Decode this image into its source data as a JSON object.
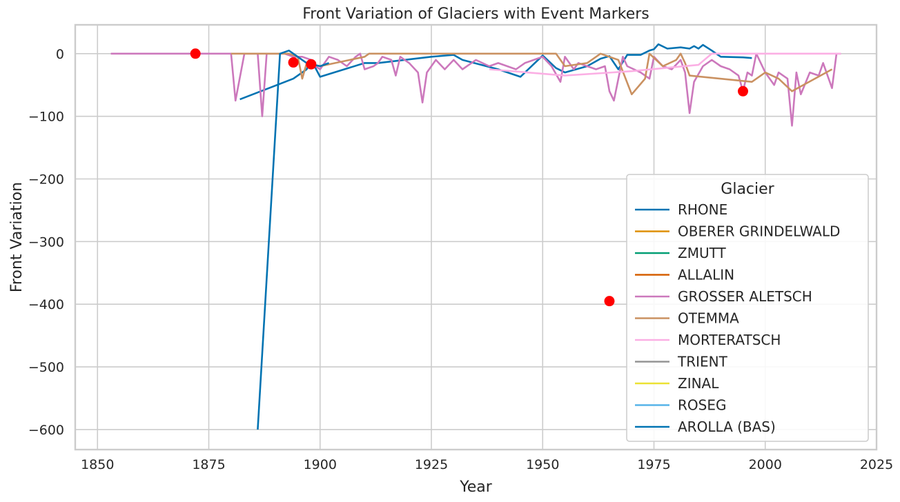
{
  "chart_data": {
    "type": "line",
    "title": "Front Variation of Glaciers with Event Markers",
    "xlabel": "Year",
    "ylabel": "Front Variation",
    "xlim": [
      1845,
      2025
    ],
    "ylim": [
      -632,
      46
    ],
    "x_ticks": [
      1850,
      1875,
      1900,
      1925,
      1950,
      1975,
      2000,
      2025
    ],
    "y_ticks": [
      0,
      -100,
      -200,
      -300,
      -400,
      -500,
      -600
    ],
    "grid": true,
    "legend": {
      "title": "Glacier",
      "placement": "lower-right"
    },
    "series": [
      {
        "name": "RHONE",
        "color": "#0173b2",
        "points": [
          [
            1882,
            -73
          ],
          [
            1894,
            -40
          ],
          [
            1897,
            -25
          ],
          [
            1898,
            -10
          ],
          [
            1900,
            -37
          ],
          [
            1910,
            -15
          ],
          [
            1913,
            -15
          ],
          [
            1925,
            -5
          ],
          [
            1930,
            -2
          ],
          [
            1932,
            -10
          ],
          [
            1940,
            -25
          ],
          [
            1945,
            -37
          ],
          [
            1950,
            -3
          ],
          [
            1953,
            -23
          ],
          [
            1955,
            -30
          ],
          [
            1960,
            -20
          ],
          [
            1963,
            -8
          ],
          [
            1965,
            -4
          ],
          [
            1967,
            -25
          ],
          [
            1969,
            -2
          ],
          [
            1972,
            -2
          ],
          [
            1974,
            5
          ],
          [
            1975,
            7
          ],
          [
            1976,
            15
          ],
          [
            1978,
            8
          ],
          [
            1981,
            10
          ],
          [
            1983,
            8
          ],
          [
            1984,
            12
          ],
          [
            1985,
            8
          ],
          [
            1986,
            14
          ],
          [
            1988,
            5
          ],
          [
            1990,
            -5
          ],
          [
            1995,
            -6
          ],
          [
            1997,
            -7
          ]
        ]
      },
      {
        "name": "OBERER GRINDELWALD",
        "color": "#de8f05",
        "points": []
      },
      {
        "name": "ZMUTT",
        "color": "#029e73",
        "points": []
      },
      {
        "name": "ALLALIN",
        "color": "#d55e00",
        "points": []
      },
      {
        "name": "GROSSER ALETSCH",
        "color": "#cc78bc",
        "points": [
          [
            1853,
            0
          ],
          [
            1880,
            0
          ],
          [
            1881,
            -75
          ],
          [
            1883,
            0
          ],
          [
            1886,
            0
          ],
          [
            1887,
            -100
          ],
          [
            1888,
            0
          ],
          [
            1892,
            0
          ],
          [
            1894,
            -5
          ],
          [
            1896,
            -5
          ],
          [
            1898,
            -10
          ],
          [
            1899,
            -20
          ],
          [
            1900,
            -25
          ],
          [
            1902,
            -5
          ],
          [
            1904,
            -10
          ],
          [
            1906,
            -20
          ],
          [
            1908,
            -5
          ],
          [
            1909,
            0
          ],
          [
            1910,
            -25
          ],
          [
            1912,
            -20
          ],
          [
            1913,
            -15
          ],
          [
            1914,
            -5
          ],
          [
            1916,
            -10
          ],
          [
            1917,
            -35
          ],
          [
            1918,
            -5
          ],
          [
            1920,
            -15
          ],
          [
            1922,
            -30
          ],
          [
            1923,
            -78
          ],
          [
            1924,
            -30
          ],
          [
            1926,
            -10
          ],
          [
            1928,
            -25
          ],
          [
            1930,
            -10
          ],
          [
            1932,
            -25
          ],
          [
            1935,
            -10
          ],
          [
            1938,
            -20
          ],
          [
            1940,
            -15
          ],
          [
            1944,
            -25
          ],
          [
            1946,
            -15
          ],
          [
            1948,
            -10
          ],
          [
            1950,
            -5
          ],
          [
            1952,
            -20
          ],
          [
            1954,
            -45
          ],
          [
            1955,
            -5
          ],
          [
            1957,
            -25
          ],
          [
            1958,
            -15
          ],
          [
            1960,
            -20
          ],
          [
            1962,
            -25
          ],
          [
            1964,
            -20
          ],
          [
            1965,
            -60
          ],
          [
            1966,
            -75
          ],
          [
            1968,
            -5
          ],
          [
            1969,
            -20
          ],
          [
            1972,
            -30
          ],
          [
            1974,
            -40
          ],
          [
            1975,
            -5
          ],
          [
            1977,
            -20
          ],
          [
            1979,
            -25
          ],
          [
            1981,
            -10
          ],
          [
            1982,
            -30
          ],
          [
            1983,
            -95
          ],
          [
            1984,
            -45
          ],
          [
            1986,
            -20
          ],
          [
            1988,
            -10
          ],
          [
            1990,
            -20
          ],
          [
            1992,
            -25
          ],
          [
            1994,
            -35
          ],
          [
            1995,
            -60
          ],
          [
            1996,
            -30
          ],
          [
            1997,
            -35
          ],
          [
            1998,
            0
          ],
          [
            2000,
            -30
          ],
          [
            2002,
            -50
          ],
          [
            2003,
            -30
          ],
          [
            2005,
            -40
          ],
          [
            2006,
            -115
          ],
          [
            2007,
            -30
          ],
          [
            2008,
            -65
          ],
          [
            2010,
            -30
          ],
          [
            2012,
            -35
          ],
          [
            2013,
            -15
          ],
          [
            2015,
            -55
          ],
          [
            2016,
            0
          ],
          [
            2017,
            0
          ]
        ]
      },
      {
        "name": "OTEMMA",
        "color": "#ca9161",
        "points": [
          [
            1880,
            0
          ],
          [
            1893,
            0
          ],
          [
            1895,
            -5
          ],
          [
            1896,
            -40
          ],
          [
            1897,
            -15
          ],
          [
            1900,
            -20
          ],
          [
            1910,
            -5
          ],
          [
            1911,
            0
          ],
          [
            1953,
            0
          ],
          [
            1955,
            -20
          ],
          [
            1960,
            -15
          ],
          [
            1963,
            0
          ],
          [
            1967,
            -10
          ],
          [
            1970,
            -65
          ],
          [
            1973,
            -40
          ],
          [
            1974,
            0
          ],
          [
            1977,
            -20
          ],
          [
            1980,
            -10
          ],
          [
            1981,
            0
          ],
          [
            1982,
            -15
          ],
          [
            1983,
            -35
          ],
          [
            1997,
            -45
          ],
          [
            2000,
            -30
          ],
          [
            2003,
            -40
          ],
          [
            2006,
            -60
          ],
          [
            2015,
            -25
          ]
        ]
      },
      {
        "name": "MORTERATSCH",
        "color": "#fbafe4",
        "points": [
          [
            1938,
            -25
          ],
          [
            1955,
            -35
          ],
          [
            1970,
            -28
          ],
          [
            1985,
            -18
          ],
          [
            1988,
            0
          ],
          [
            2017,
            0
          ]
        ]
      },
      {
        "name": "TRIENT",
        "color": "#949494",
        "points": []
      },
      {
        "name": "ZINAL",
        "color": "#ece133",
        "points": []
      },
      {
        "name": "ROSEG",
        "color": "#56b4e9",
        "points": []
      },
      {
        "name": "AROLLA (BAS)",
        "color": "#0173b2",
        "points": [
          [
            1886,
            -600
          ],
          [
            1891,
            0
          ],
          [
            1893,
            5
          ],
          [
            1896,
            -10
          ],
          [
            1897,
            -15
          ],
          [
            1900,
            -20
          ],
          [
            1902,
            -15
          ]
        ]
      }
    ],
    "event_markers": {
      "color": "#ff0000",
      "points": [
        [
          1872,
          0
        ],
        [
          1894,
          -14
        ],
        [
          1898,
          -17
        ],
        [
          1965,
          -395
        ],
        [
          1995,
          -60
        ]
      ]
    }
  }
}
